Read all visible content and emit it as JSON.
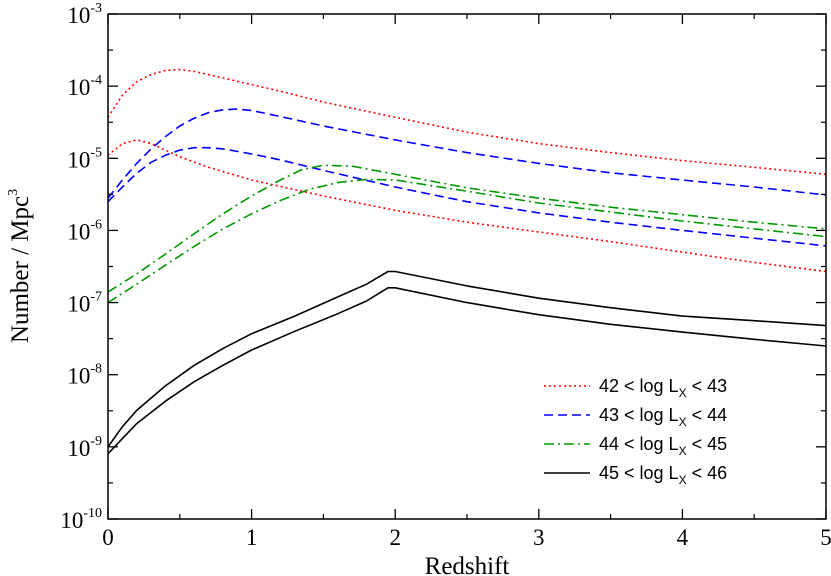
{
  "chart_data": {
    "type": "line",
    "xlabel": "Redshift",
    "ylabel_base": "Number / Mpc",
    "ylabel_exp": "3",
    "xlim": [
      0,
      5
    ],
    "ylim_log10": [
      -10,
      -3
    ],
    "yscale": "log",
    "x_ticks": [
      {
        "value": 0,
        "label": "0"
      },
      {
        "value": 1,
        "label": "1"
      },
      {
        "value": 2,
        "label": "2"
      },
      {
        "value": 3,
        "label": "3"
      },
      {
        "value": 4,
        "label": "4"
      },
      {
        "value": 5,
        "label": "5"
      }
    ],
    "y_ticks": [
      {
        "value": -3,
        "base": "10",
        "exp": "-3"
      },
      {
        "value": -4,
        "base": "10",
        "exp": "-4"
      },
      {
        "value": -5,
        "base": "10",
        "exp": "-5"
      },
      {
        "value": -6,
        "base": "10",
        "exp": "-6"
      },
      {
        "value": -7,
        "base": "10",
        "exp": "-7"
      },
      {
        "value": -8,
        "base": "10",
        "exp": "-8"
      },
      {
        "value": -9,
        "base": "10",
        "exp": "-9"
      },
      {
        "value": -10,
        "base": "10",
        "exp": "-10"
      }
    ],
    "legend": {
      "position": "bottom-right",
      "entries": [
        {
          "series": "42 < log L_X < 43",
          "pre": "42 < log L",
          "sub": "X",
          "post": " < 43"
        },
        {
          "series": "43 < log L_X < 44",
          "pre": "43 < log L",
          "sub": "X",
          "post": " < 44"
        },
        {
          "series": "44 < log L_X < 45",
          "pre": "44 < log L",
          "sub": "X",
          "post": " < 45"
        },
        {
          "series": "45 < log L_X < 46",
          "pre": "45 < log L",
          "sub": "X",
          "post": " < 46"
        }
      ]
    },
    "series": [
      {
        "name": "42 < log L_X < 43",
        "color": "#ff0000",
        "style": "dotted",
        "curves": [
          [
            [
              0,
              3.7e-05
            ],
            [
              0.1,
              7.5e-05
            ],
            [
              0.2,
              0.000115
            ],
            [
              0.3,
              0.000145
            ],
            [
              0.4,
              0.000165
            ],
            [
              0.5,
              0.00017
            ],
            [
              0.6,
              0.00016
            ],
            [
              0.8,
              0.00013
            ],
            [
              1.0,
              0.000105
            ],
            [
              1.2,
              8.5e-05
            ],
            [
              1.5,
              6e-05
            ],
            [
              2.0,
              3.7e-05
            ],
            [
              2.5,
              2.3e-05
            ],
            [
              3.0,
              1.6e-05
            ],
            [
              3.5,
              1.2e-05
            ],
            [
              4.0,
              9.3e-06
            ],
            [
              4.5,
              7.5e-06
            ],
            [
              5.0,
              6e-06
            ]
          ],
          [
            [
              0,
              1.1e-05
            ],
            [
              0.1,
              1.6e-05
            ],
            [
              0.2,
              1.8e-05
            ],
            [
              0.3,
              1.6e-05
            ],
            [
              0.4,
              1.3e-05
            ],
            [
              0.5,
              1.05e-05
            ],
            [
              0.7,
              7.5e-06
            ],
            [
              1.0,
              5e-06
            ],
            [
              1.5,
              3e-06
            ],
            [
              2.0,
              1.9e-06
            ],
            [
              2.5,
              1.3e-06
            ],
            [
              3.0,
              9.5e-07
            ],
            [
              3.5,
              7e-07
            ],
            [
              4.0,
              5e-07
            ],
            [
              4.5,
              3.6e-07
            ],
            [
              5.0,
              2.7e-07
            ]
          ]
        ]
      },
      {
        "name": "43 < log L_X < 44",
        "color": "#0000ff",
        "style": "dashed",
        "curves": [
          [
            [
              0,
              2.8e-06
            ],
            [
              0.1,
              5e-06
            ],
            [
              0.2,
              8.5e-06
            ],
            [
              0.3,
              1.35e-05
            ],
            [
              0.4,
              2e-05
            ],
            [
              0.5,
              2.8e-05
            ],
            [
              0.6,
              3.6e-05
            ],
            [
              0.7,
              4.3e-05
            ],
            [
              0.8,
              4.7e-05
            ],
            [
              0.9,
              4.8e-05
            ],
            [
              1.0,
              4.6e-05
            ],
            [
              1.2,
              3.8e-05
            ],
            [
              1.5,
              2.8e-05
            ],
            [
              2.0,
              1.8e-05
            ],
            [
              2.5,
              1.2e-05
            ],
            [
              3.0,
              8.5e-06
            ],
            [
              3.5,
              6.3e-06
            ],
            [
              4.0,
              5e-06
            ],
            [
              4.5,
              4e-06
            ],
            [
              5.0,
              3.1e-06
            ]
          ],
          [
            [
              0,
              2.5e-06
            ],
            [
              0.1,
              4e-06
            ],
            [
              0.2,
              6.2e-06
            ],
            [
              0.3,
              8.8e-06
            ],
            [
              0.4,
              1.1e-05
            ],
            [
              0.5,
              1.3e-05
            ],
            [
              0.6,
              1.4e-05
            ],
            [
              0.7,
              1.4e-05
            ],
            [
              0.8,
              1.35e-05
            ],
            [
              1.0,
              1.15e-05
            ],
            [
              1.2,
              9.5e-06
            ],
            [
              1.5,
              6.8e-06
            ],
            [
              2.0,
              4e-06
            ],
            [
              2.5,
              2.5e-06
            ],
            [
              3.0,
              1.75e-06
            ],
            [
              3.5,
              1.3e-06
            ],
            [
              4.0,
              1e-06
            ],
            [
              4.5,
              7.8e-07
            ],
            [
              5.0,
              6.1e-07
            ]
          ]
        ]
      },
      {
        "name": "44 < log L_X < 45",
        "color": "#009900",
        "style": "dashdot",
        "curves": [
          [
            [
              0,
              1.4e-07
            ],
            [
              0.2,
              2.5e-07
            ],
            [
              0.4,
              4.7e-07
            ],
            [
              0.6,
              9e-07
            ],
            [
              0.8,
              1.7e-06
            ],
            [
              1.0,
              3e-06
            ],
            [
              1.2,
              5e-06
            ],
            [
              1.35,
              7e-06
            ],
            [
              1.5,
              8e-06
            ],
            [
              1.7,
              7.8e-06
            ],
            [
              2.0,
              6e-06
            ],
            [
              2.5,
              3.9e-06
            ],
            [
              3.0,
              2.8e-06
            ],
            [
              3.5,
              2.1e-06
            ],
            [
              4.0,
              1.65e-06
            ],
            [
              4.5,
              1.3e-06
            ],
            [
              5.0,
              1.05e-06
            ]
          ],
          [
            [
              0,
              1e-07
            ],
            [
              0.2,
              1.8e-07
            ],
            [
              0.4,
              3.3e-07
            ],
            [
              0.6,
              6e-07
            ],
            [
              0.8,
              1.05e-06
            ],
            [
              1.0,
              1.7e-06
            ],
            [
              1.2,
              2.6e-06
            ],
            [
              1.4,
              3.7e-06
            ],
            [
              1.6,
              4.6e-06
            ],
            [
              1.8,
              5.1e-06
            ],
            [
              2.0,
              5e-06
            ],
            [
              2.5,
              3.5e-06
            ],
            [
              3.0,
              2.4e-06
            ],
            [
              3.5,
              1.8e-06
            ],
            [
              4.0,
              1.35e-06
            ],
            [
              4.5,
              1.05e-06
            ],
            [
              5.0,
              8.2e-07
            ]
          ]
        ]
      },
      {
        "name": "45 < log L_X < 46",
        "color": "#000000",
        "style": "solid",
        "curves": [
          [
            [
              0,
              1e-09
            ],
            [
              0.1,
              1.9e-09
            ],
            [
              0.2,
              3.2e-09
            ],
            [
              0.4,
              7e-09
            ],
            [
              0.6,
              1.35e-08
            ],
            [
              0.8,
              2.3e-08
            ],
            [
              1.0,
              3.7e-08
            ],
            [
              1.3,
              6.5e-08
            ],
            [
              1.6,
              1.2e-07
            ],
            [
              1.8,
              1.8e-07
            ],
            [
              1.95,
              2.7e-07
            ],
            [
              2.0,
              2.7e-07
            ],
            [
              2.5,
              1.7e-07
            ],
            [
              3.0,
              1.15e-07
            ],
            [
              3.5,
              8.5e-08
            ],
            [
              4.0,
              6.5e-08
            ],
            [
              4.5,
              5.6e-08
            ],
            [
              5.0,
              4.8e-08
            ]
          ],
          [
            [
              0,
              8e-10
            ],
            [
              0.1,
              1.3e-09
            ],
            [
              0.2,
              2.1e-09
            ],
            [
              0.4,
              4.3e-09
            ],
            [
              0.6,
              8e-09
            ],
            [
              0.8,
              1.35e-08
            ],
            [
              1.0,
              2.2e-08
            ],
            [
              1.3,
              4e-08
            ],
            [
              1.6,
              7e-08
            ],
            [
              1.8,
              1.05e-07
            ],
            [
              1.95,
              1.6e-07
            ],
            [
              2.0,
              1.6e-07
            ],
            [
              2.5,
              1e-07
            ],
            [
              3.0,
              6.8e-08
            ],
            [
              3.5,
              5e-08
            ],
            [
              4.0,
              3.9e-08
            ],
            [
              4.5,
              3.1e-08
            ],
            [
              5.0,
              2.5e-08
            ]
          ]
        ]
      }
    ]
  }
}
